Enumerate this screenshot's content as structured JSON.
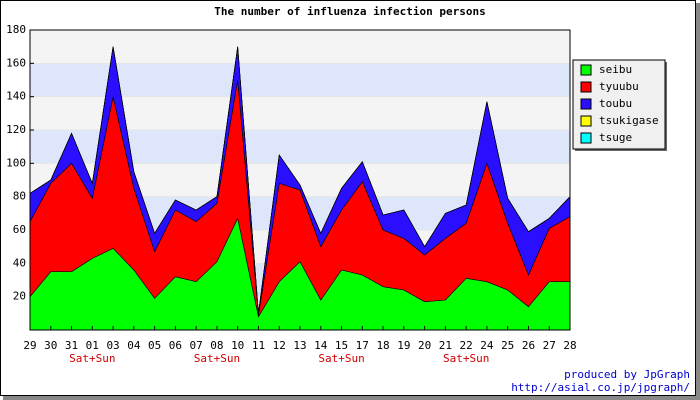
{
  "chart_data": {
    "type": "stacked-area",
    "title": "The number of influenza infection persons",
    "categories": [
      "29",
      "30",
      "31",
      "01",
      "03",
      "04",
      "05",
      "06",
      "07",
      "08",
      "10",
      "11",
      "12",
      "13",
      "14",
      "15",
      "17",
      "18",
      "19",
      "20",
      "21",
      "22",
      "24",
      "25",
      "26",
      "27",
      "28"
    ],
    "sublabels": [
      null,
      null,
      null,
      "Sat+Sun",
      null,
      null,
      null,
      null,
      null,
      "Sat+Sun",
      null,
      null,
      null,
      null,
      null,
      "Sat+Sun",
      null,
      null,
      null,
      null,
      null,
      "Sat+Sun",
      null,
      null,
      null,
      null,
      null
    ],
    "series": [
      {
        "name": "seibu",
        "color": "#00ff00",
        "values": [
          20,
          35,
          35,
          43,
          49,
          36,
          19,
          32,
          29,
          41,
          67,
          8,
          29,
          41,
          18,
          36,
          33,
          26,
          24,
          17,
          18,
          31,
          29,
          24,
          14,
          29,
          29
        ]
      },
      {
        "name": "tyuubu",
        "color": "#ff0000",
        "values": [
          45,
          53,
          65,
          36,
          91,
          49,
          28,
          40,
          36,
          35,
          83,
          1,
          59,
          43,
          32,
          36,
          56,
          34,
          31,
          28,
          37,
          33,
          71,
          40,
          19,
          32,
          39
        ]
      },
      {
        "name": "toubu",
        "color": "#2a0fff",
        "values": [
          17,
          2,
          18,
          9,
          30,
          10,
          11,
          6,
          7,
          4,
          20,
          1,
          17,
          3,
          8,
          13,
          12,
          9,
          17,
          5,
          15,
          11,
          37,
          15,
          26,
          6,
          12
        ]
      },
      {
        "name": "tsukigase",
        "color": "#ffff00",
        "values": [
          0,
          0,
          0,
          0,
          0,
          0,
          0,
          0,
          0,
          0,
          0,
          0,
          0,
          0,
          0,
          0,
          0,
          0,
          0,
          0,
          0,
          0,
          0,
          0,
          0,
          0,
          0
        ]
      },
      {
        "name": "tsuge",
        "color": "#00ffff",
        "values": [
          0,
          0,
          0,
          0,
          0,
          0,
          0,
          0,
          0,
          0,
          0,
          0,
          0,
          0,
          0,
          0,
          0,
          0,
          0,
          0,
          0,
          0,
          0,
          0,
          0,
          0,
          0
        ]
      }
    ],
    "ylim": [
      0,
      180
    ],
    "yticks": [
      20,
      40,
      60,
      80,
      100,
      120,
      140,
      160,
      180
    ],
    "grid": true,
    "legend": "right",
    "credits": [
      "produced by JpGraph",
      "http://asial.co.jp/jpgraph/"
    ]
  }
}
